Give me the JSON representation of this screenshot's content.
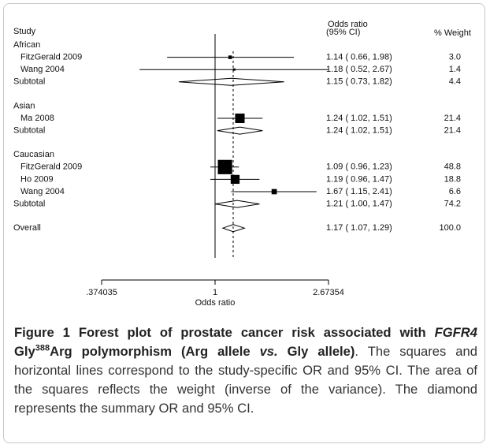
{
  "chart_data": {
    "type": "forest",
    "header": {
      "study": "Study",
      "or": "Odds ratio",
      "ci": "(95% CI)",
      "weight": "% Weight"
    },
    "xlabel": "Odds ratio",
    "xscale": "log",
    "xlim": [
      0.374035,
      2.67354
    ],
    "xticks": [
      {
        "value": 0.374035,
        "label": ".374035"
      },
      1,
      2.67354
    ],
    "null_value": 1,
    "color": "#000000",
    "rows": [
      {
        "label": "African"
      },
      {
        "label": "FitzGerald 2009",
        "marker": "square",
        "or": 1.14,
        "lo": 0.66,
        "hi": 1.98,
        "weight": 3.0,
        "ci_label": "1.14 ( 0.66, 1.98)",
        "weight_label": "3.0"
      },
      {
        "label": "Wang 2004",
        "marker": "square",
        "or": 1.18,
        "lo": 0.52,
        "hi": 2.67,
        "weight": 1.4,
        "ci_label": "1.18 ( 0.52, 2.67)",
        "weight_label": "1.4"
      },
      {
        "label": "Subtotal",
        "marker": "diamond",
        "or": 1.15,
        "lo": 0.73,
        "hi": 1.82,
        "weight": 4.4,
        "ci_label": "1.15 ( 0.73, 1.82)",
        "weight_label": "4.4"
      },
      {
        "label": "Asian"
      },
      {
        "label": "Ma 2008",
        "marker": "square",
        "or": 1.24,
        "lo": 1.02,
        "hi": 1.51,
        "weight": 21.4,
        "ci_label": "1.24 ( 1.02, 1.51)",
        "weight_label": "21.4"
      },
      {
        "label": "Subtotal",
        "marker": "diamond",
        "or": 1.24,
        "lo": 1.02,
        "hi": 1.51,
        "weight": 21.4,
        "ci_label": "1.24 ( 1.02, 1.51)",
        "weight_label": "21.4"
      },
      {
        "label": "Caucasian"
      },
      {
        "label": "FitzGerald 2009",
        "marker": "square",
        "or": 1.09,
        "lo": 0.96,
        "hi": 1.23,
        "weight": 48.8,
        "ci_label": "1.09 ( 0.96, 1.23)",
        "weight_label": "48.8"
      },
      {
        "label": "Ho 2009",
        "marker": "square",
        "or": 1.19,
        "lo": 0.96,
        "hi": 1.47,
        "weight": 18.8,
        "ci_label": "1.19 ( 0.96, 1.47)",
        "weight_label": "18.8"
      },
      {
        "label": "Wang 2004",
        "marker": "square",
        "or": 1.67,
        "lo": 1.15,
        "hi": 2.41,
        "weight": 6.6,
        "ci_label": "1.67 ( 1.15, 2.41)",
        "weight_label": "6.6"
      },
      {
        "label": "Subtotal",
        "marker": "diamond",
        "or": 1.21,
        "lo": 1.0,
        "hi": 1.47,
        "weight": 74.2,
        "ci_label": "1.21 ( 1.00, 1.47)",
        "weight_label": "74.2"
      },
      {
        "label": "Overall",
        "marker": "diamond",
        "overall": true,
        "or": 1.17,
        "lo": 1.07,
        "hi": 1.29,
        "weight": 100.0,
        "ci_label": "1.17 ( 1.07, 1.29)",
        "weight_label": "100.0"
      }
    ]
  },
  "caption": [
    {
      "text": "Figure 1 Forest plot of prostate cancer risk associated with ",
      "style": "bold"
    },
    {
      "text": "FGFR4",
      "style": "bold-italic"
    },
    {
      "text": " Gly",
      "style": "bold"
    },
    {
      "text": "388",
      "style": "bold-sup"
    },
    {
      "text": "Arg polymorphism (Arg allele ",
      "style": "bold"
    },
    {
      "text": "vs.",
      "style": "bold-italic"
    },
    {
      "text": " Gly allele)",
      "style": "bold"
    },
    {
      "text": ". The squares and horizontal lines correspond to the study-specific OR and 95% CI. The area of the squares reflects the weight (inverse of the variance). The diamond represents the summary OR and 95% CI.",
      "style": "normal"
    }
  ]
}
